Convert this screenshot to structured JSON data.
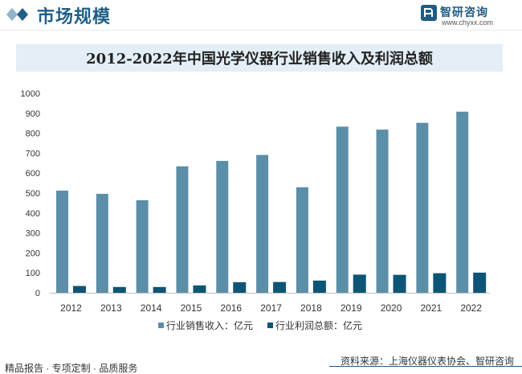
{
  "header": {
    "section_title": "市场规模",
    "brand_name": "智研咨询",
    "brand_url": "www.chyxx.com"
  },
  "chart_data": {
    "type": "bar",
    "title": "2012-2022年中国光学仪器行业销售收入及利润总额",
    "xlabel": "",
    "ylabel": "",
    "categories": [
      "2012",
      "2013",
      "2014",
      "2015",
      "2016",
      "2017",
      "2018",
      "2019",
      "2020",
      "2021",
      "2022"
    ],
    "series": [
      {
        "name": "行业销售收入：亿元",
        "color": "#5b8fa9",
        "values": [
          512,
          496,
          464,
          634,
          661,
          691,
          529,
          833,
          818,
          852,
          908
        ]
      },
      {
        "name": "行业利润总额：亿元",
        "color": "#0d5576",
        "values": [
          34,
          29,
          29,
          37,
          53,
          54,
          61,
          91,
          90,
          98,
          101
        ]
      }
    ],
    "ylim": [
      0,
      1000
    ],
    "yticks": [
      0,
      100,
      200,
      300,
      400,
      500,
      600,
      700,
      800,
      900,
      1000
    ],
    "grid": false,
    "legend": "bottom"
  },
  "footer": {
    "left": "精品报告 · 专项定制 · 品质服务",
    "right": "资料来源：上海仪器仪表协会、智研咨询"
  }
}
